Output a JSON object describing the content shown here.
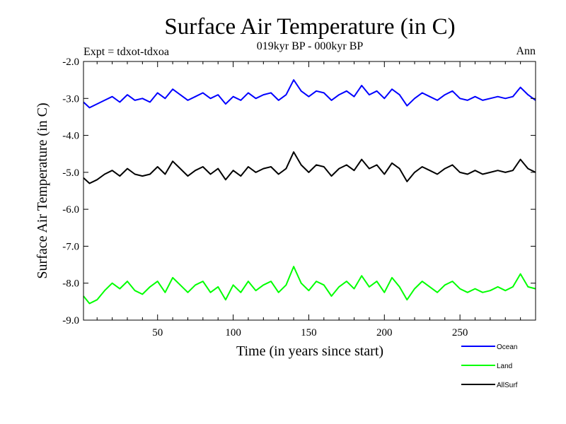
{
  "chart_data": {
    "type": "line",
    "title": "Surface Air Temperature (in C)",
    "subtitle": "019kyr BP - 000kyr BP",
    "experiment_label": "Expt = tdxot-tdxoa",
    "period_label": "Ann",
    "xlabel": "Time (in years since start)",
    "ylabel": "Surface Air Temperature (in C)",
    "xlim": [
      1,
      300
    ],
    "ylim": [
      -9.0,
      -2.0
    ],
    "x_ticks": [
      50,
      100,
      150,
      200,
      250
    ],
    "x_tick_labels": [
      "50",
      "100",
      "150",
      "200",
      "250"
    ],
    "y_ticks": [
      -2.0,
      -3.0,
      -4.0,
      -5.0,
      -6.0,
      -7.0,
      -8.0,
      -9.0
    ],
    "y_tick_labels": [
      "-2.0",
      "-3.0",
      "-4.0",
      "-5.0",
      "-6.0",
      "-7.0",
      "-8.0",
      "-9.0"
    ],
    "grid": false,
    "legend_position": "bottom-right",
    "x": [
      1,
      5,
      10,
      15,
      20,
      25,
      30,
      35,
      40,
      45,
      50,
      55,
      60,
      65,
      70,
      75,
      80,
      85,
      90,
      95,
      100,
      105,
      110,
      115,
      120,
      125,
      130,
      135,
      140,
      145,
      150,
      155,
      160,
      165,
      170,
      175,
      180,
      185,
      190,
      195,
      200,
      205,
      210,
      215,
      220,
      225,
      230,
      235,
      240,
      245,
      250,
      255,
      260,
      265,
      270,
      275,
      280,
      285,
      290,
      295,
      300
    ],
    "series": [
      {
        "name": "Ocean",
        "color": "#0000ff",
        "values": [
          -3.1,
          -3.25,
          -3.15,
          -3.05,
          -2.95,
          -3.1,
          -2.9,
          -3.05,
          -3.0,
          -3.1,
          -2.85,
          -3.0,
          -2.75,
          -2.9,
          -3.05,
          -2.95,
          -2.85,
          -3.0,
          -2.9,
          -3.15,
          -2.95,
          -3.05,
          -2.85,
          -3.0,
          -2.9,
          -2.85,
          -3.05,
          -2.9,
          -2.5,
          -2.8,
          -2.95,
          -2.8,
          -2.85,
          -3.05,
          -2.9,
          -2.8,
          -2.95,
          -2.65,
          -2.9,
          -2.8,
          -3.0,
          -2.75,
          -2.9,
          -3.2,
          -3.0,
          -2.85,
          -2.95,
          -3.05,
          -2.9,
          -2.8,
          -3.0,
          -3.05,
          -2.95,
          -3.05,
          -3.0,
          -2.95,
          -3.0,
          -2.95,
          -2.7,
          -2.9,
          -3.05
        ]
      },
      {
        "name": "Land",
        "color": "#00ff00",
        "values": [
          -8.35,
          -8.55,
          -8.45,
          -8.2,
          -8.0,
          -8.15,
          -7.95,
          -8.2,
          -8.3,
          -8.1,
          -7.95,
          -8.25,
          -7.85,
          -8.05,
          -8.25,
          -8.05,
          -7.95,
          -8.25,
          -8.1,
          -8.45,
          -8.05,
          -8.25,
          -7.95,
          -8.2,
          -8.05,
          -7.95,
          -8.25,
          -8.05,
          -7.55,
          -8.0,
          -8.2,
          -7.95,
          -8.05,
          -8.35,
          -8.1,
          -7.95,
          -8.15,
          -7.8,
          -8.1,
          -7.95,
          -8.25,
          -7.85,
          -8.1,
          -8.45,
          -8.15,
          -7.95,
          -8.1,
          -8.25,
          -8.05,
          -7.95,
          -8.15,
          -8.25,
          -8.15,
          -8.25,
          -8.2,
          -8.1,
          -8.2,
          -8.1,
          -7.75,
          -8.1,
          -8.15
        ]
      },
      {
        "name": "AllSurf",
        "color": "#000000",
        "values": [
          -5.15,
          -5.3,
          -5.2,
          -5.05,
          -4.95,
          -5.1,
          -4.9,
          -5.05,
          -5.1,
          -5.05,
          -4.85,
          -5.05,
          -4.7,
          -4.9,
          -5.1,
          -4.95,
          -4.85,
          -5.05,
          -4.9,
          -5.2,
          -4.95,
          -5.1,
          -4.85,
          -5.0,
          -4.9,
          -4.85,
          -5.05,
          -4.9,
          -4.45,
          -4.8,
          -5.0,
          -4.8,
          -4.85,
          -5.1,
          -4.9,
          -4.8,
          -4.95,
          -4.65,
          -4.9,
          -4.8,
          -5.05,
          -4.75,
          -4.9,
          -5.25,
          -5.0,
          -4.85,
          -4.95,
          -5.05,
          -4.9,
          -4.8,
          -5.0,
          -5.05,
          -4.95,
          -5.05,
          -5.0,
          -4.95,
          -5.0,
          -4.95,
          -4.65,
          -4.9,
          -5.0
        ]
      }
    ],
    "legend": [
      {
        "name": "Ocean",
        "color": "#0000ff"
      },
      {
        "name": "Land",
        "color": "#00ff00"
      },
      {
        "name": "AllSurf",
        "color": "#000000"
      }
    ]
  }
}
